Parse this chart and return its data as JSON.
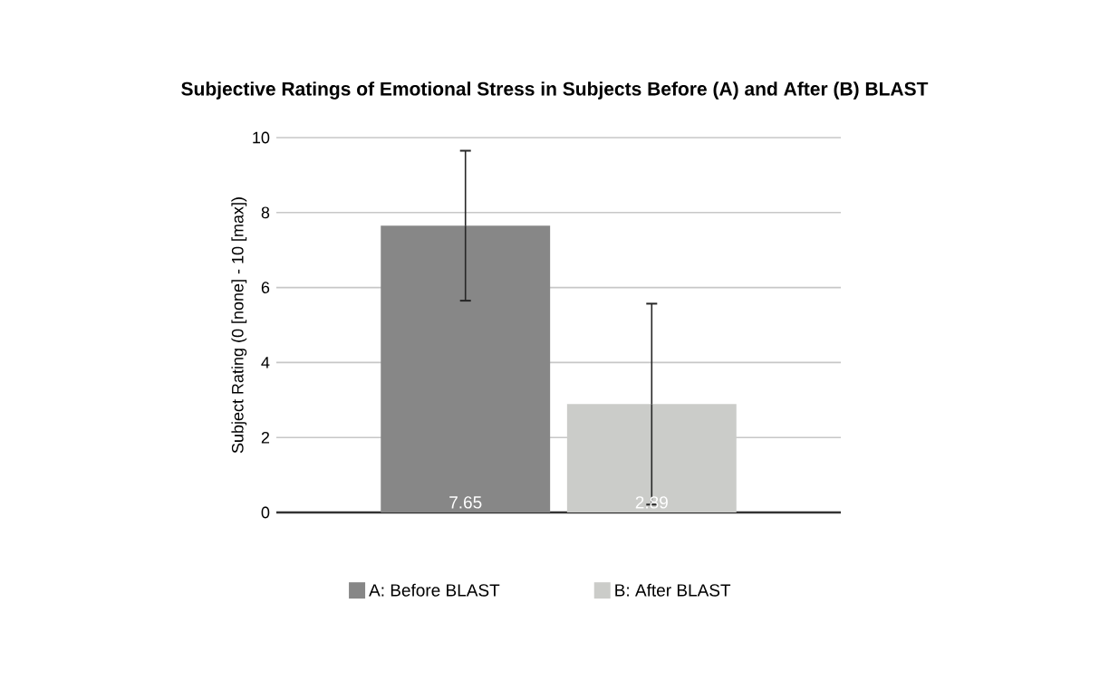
{
  "chart_data": {
    "type": "bar",
    "title": "Subjective Ratings of Emotional Stress in Subjects Before (A) and After (B) BLAST",
    "ylabel": "Subject Rating (0 [none] - 10 [max])",
    "categories": [
      null
    ],
    "series": [
      {
        "name": "A: Before BLAST",
        "color": "#878787",
        "values": [
          7.65
        ],
        "errors": [
          2.0
        ]
      },
      {
        "name": "B: After BLAST",
        "color": "#cbccc9",
        "values": [
          2.89
        ],
        "errors": [
          2.68
        ]
      }
    ],
    "ylim": [
      0,
      10
    ],
    "yticks": [
      0,
      2,
      4,
      6,
      8,
      10
    ],
    "grid": "y",
    "legend": "bottom",
    "data_labels": true
  }
}
